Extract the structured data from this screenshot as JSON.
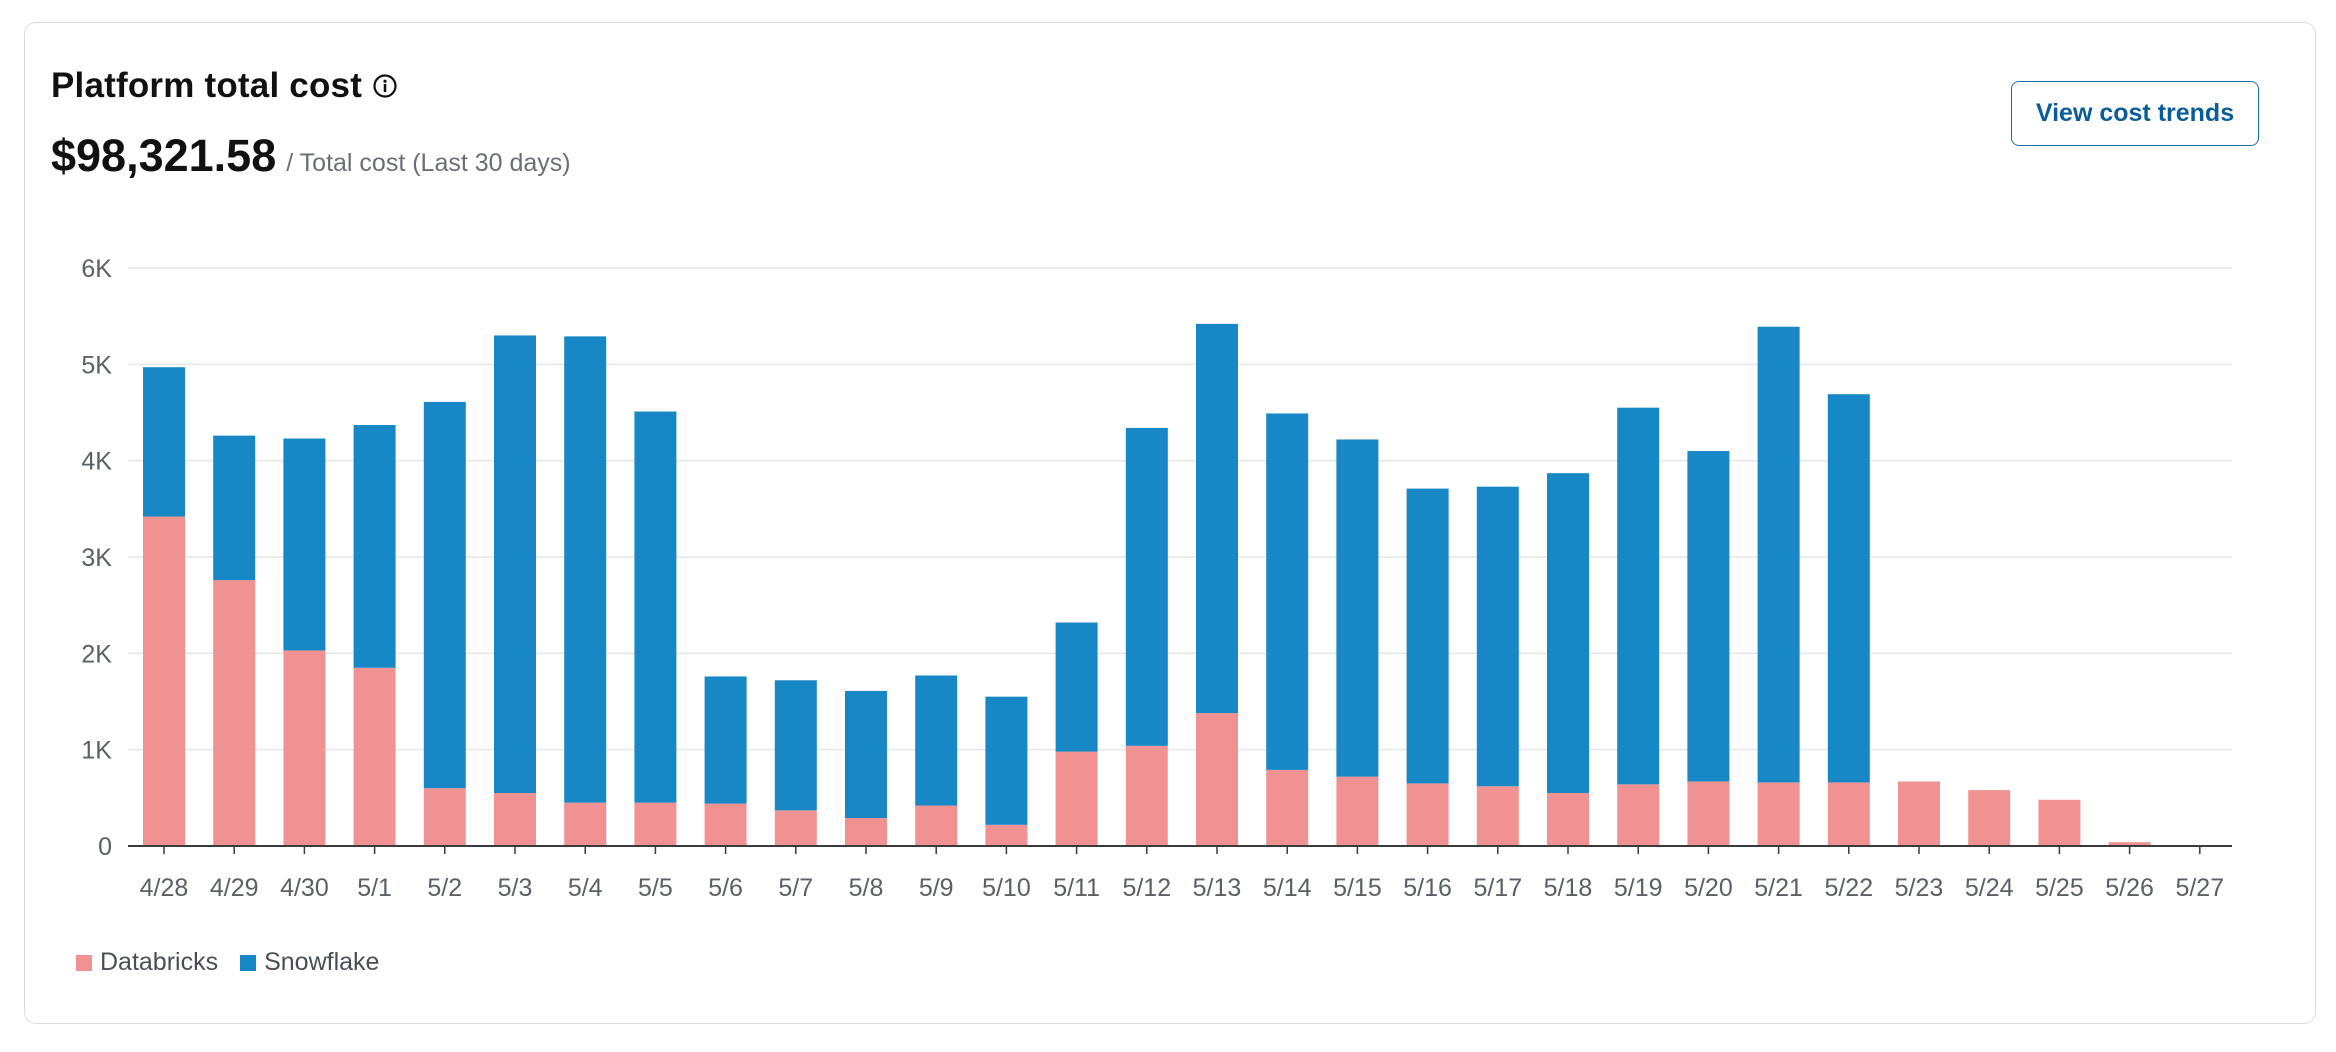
{
  "header": {
    "title": "Platform total cost",
    "info_icon": "info-circle-icon",
    "total_amount": "$98,321.58",
    "total_caption": "/ Total cost (Last 30 days)",
    "button_label": "View cost trends"
  },
  "colors": {
    "databricks": "#F09292",
    "snowflake": "#1787C5",
    "button_text": "#0A5D97",
    "grid": "#E3E6EA",
    "axis": "#3A3A3A"
  },
  "chart_data": {
    "type": "bar",
    "stacked": true,
    "title": "",
    "xlabel": "",
    "ylabel": "",
    "ylim": [
      0,
      6000
    ],
    "yticks": [
      0,
      1000,
      2000,
      3000,
      4000,
      5000,
      6000
    ],
    "ytick_labels": [
      "0",
      "1K",
      "2K",
      "3K",
      "4K",
      "5K",
      "6K"
    ],
    "grid": true,
    "legend_position": "bottom-left",
    "categories": [
      "4/28",
      "4/29",
      "4/30",
      "5/1",
      "5/2",
      "5/3",
      "5/4",
      "5/5",
      "5/6",
      "5/7",
      "5/8",
      "5/9",
      "5/10",
      "5/11",
      "5/12",
      "5/13",
      "5/14",
      "5/15",
      "5/16",
      "5/17",
      "5/18",
      "5/19",
      "5/20",
      "5/21",
      "5/22",
      "5/23",
      "5/24",
      "5/25",
      "5/26",
      "5/27"
    ],
    "series": [
      {
        "name": "Databricks",
        "values": [
          3420,
          2760,
          2030,
          1850,
          600,
          550,
          450,
          450,
          440,
          370,
          290,
          420,
          220,
          980,
          1040,
          1380,
          790,
          720,
          650,
          620,
          550,
          640,
          670,
          660,
          660,
          670,
          580,
          480,
          40,
          0
        ]
      },
      {
        "name": "Snowflake",
        "values": [
          1550,
          1500,
          2200,
          2520,
          4010,
          4750,
          4840,
          4060,
          1320,
          1350,
          1320,
          1350,
          1330,
          1340,
          3300,
          4040,
          3700,
          3500,
          3060,
          3110,
          3320,
          3910,
          3430,
          4730,
          4030,
          0,
          0,
          0,
          0,
          0
        ]
      }
    ]
  }
}
